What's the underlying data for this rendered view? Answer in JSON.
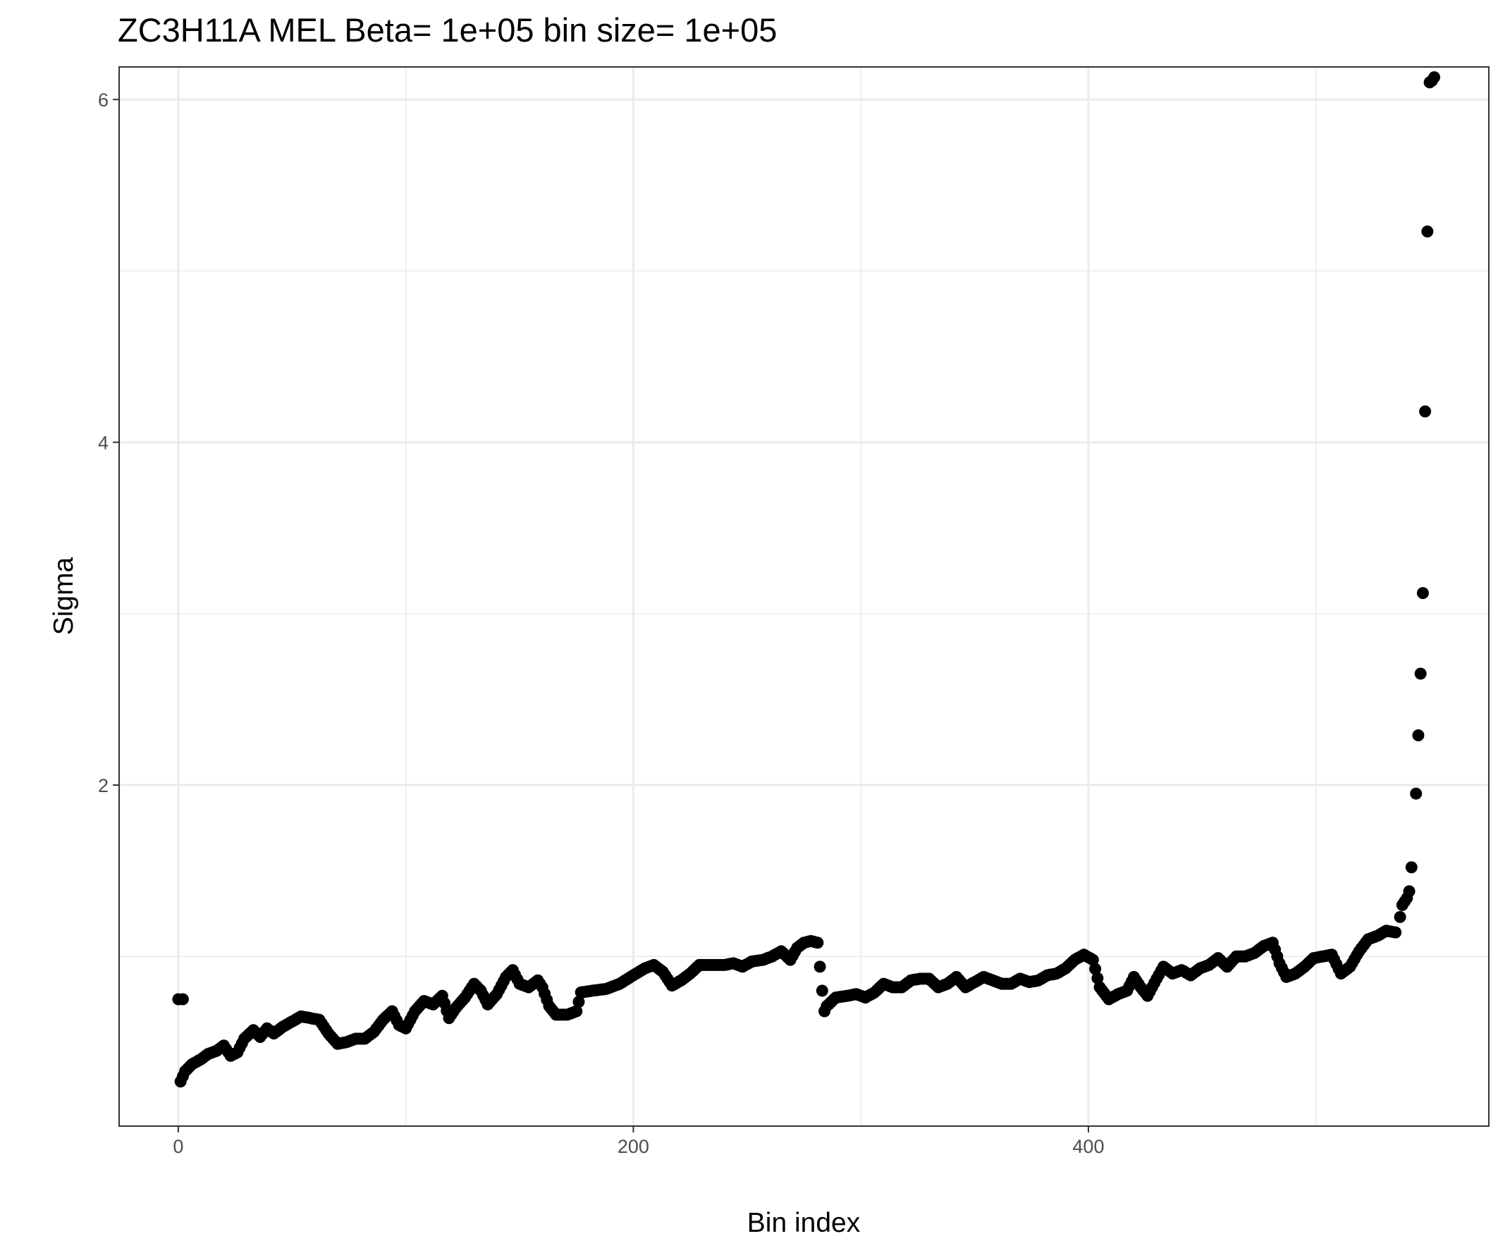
{
  "chart_data": {
    "type": "scatter",
    "title": "ZC3H11A MEL  Beta=  1e+05  bin size=  1e+05",
    "xlabel": "Bin index",
    "ylabel": "Sigma",
    "xlim": [
      -26,
      576
    ],
    "ylim": [
      0.01,
      6.19
    ],
    "grid": true,
    "x_ticks": [
      0,
      200,
      400
    ],
    "x_minor_ticks": [
      100,
      300,
      500
    ],
    "y_ticks": [
      2,
      4,
      6
    ],
    "y_minor_ticks": [
      1,
      3,
      5
    ],
    "point_color": "#000000",
    "knots": [
      [
        1,
        0.27
      ],
      [
        3,
        0.33
      ],
      [
        6,
        0.37
      ],
      [
        10,
        0.4
      ],
      [
        13,
        0.43
      ],
      [
        17,
        0.45
      ],
      [
        20,
        0.48
      ],
      [
        23,
        0.42
      ],
      [
        26,
        0.44
      ],
      [
        29,
        0.52
      ],
      [
        33,
        0.57
      ],
      [
        36,
        0.53
      ],
      [
        39,
        0.58
      ],
      [
        42,
        0.55
      ],
      [
        46,
        0.59
      ],
      [
        50,
        0.62
      ],
      [
        54,
        0.65
      ],
      [
        58,
        0.64
      ],
      [
        62,
        0.63
      ],
      [
        66,
        0.55
      ],
      [
        70,
        0.49
      ],
      [
        74,
        0.5
      ],
      [
        78,
        0.52
      ],
      [
        82,
        0.52
      ],
      [
        86,
        0.56
      ],
      [
        90,
        0.63
      ],
      [
        94,
        0.68
      ],
      [
        97,
        0.6
      ],
      [
        100,
        0.58
      ],
      [
        104,
        0.68
      ],
      [
        108,
        0.74
      ],
      [
        112,
        0.72
      ],
      [
        116,
        0.77
      ],
      [
        119,
        0.64
      ],
      [
        122,
        0.7
      ],
      [
        126,
        0.76
      ],
      [
        130,
        0.84
      ],
      [
        133,
        0.8
      ],
      [
        136,
        0.72
      ],
      [
        140,
        0.78
      ],
      [
        144,
        0.88
      ],
      [
        147,
        0.92
      ],
      [
        150,
        0.84
      ],
      [
        154,
        0.82
      ],
      [
        158,
        0.86
      ],
      [
        160,
        0.82
      ],
      [
        163,
        0.71
      ],
      [
        166,
        0.66
      ],
      [
        171,
        0.66
      ],
      [
        175,
        0.68
      ],
      [
        177,
        0.79
      ],
      [
        182,
        0.8
      ],
      [
        188,
        0.81
      ],
      [
        194,
        0.84
      ],
      [
        200,
        0.89
      ],
      [
        205,
        0.93
      ],
      [
        209,
        0.95
      ],
      [
        213,
        0.91
      ],
      [
        217,
        0.83
      ],
      [
        221,
        0.86
      ],
      [
        225,
        0.9
      ],
      [
        229,
        0.95
      ],
      [
        235,
        0.95
      ],
      [
        240,
        0.95
      ],
      [
        244,
        0.96
      ],
      [
        248,
        0.94
      ],
      [
        252,
        0.97
      ],
      [
        257,
        0.98
      ],
      [
        261,
        1.0
      ],
      [
        265,
        1.03
      ],
      [
        269,
        0.98
      ],
      [
        272,
        1.05
      ],
      [
        275,
        1.08
      ],
      [
        278,
        1.09
      ],
      [
        281,
        1.08
      ]
    ],
    "knots_2": [
      [
        285,
        0.71
      ],
      [
        289,
        0.76
      ],
      [
        294,
        0.77
      ],
      [
        298,
        0.78
      ],
      [
        302,
        0.76
      ],
      [
        306,
        0.79
      ],
      [
        310,
        0.84
      ],
      [
        314,
        0.82
      ],
      [
        318,
        0.82
      ],
      [
        322,
        0.86
      ],
      [
        326,
        0.87
      ],
      [
        330,
        0.87
      ],
      [
        334,
        0.82
      ],
      [
        338,
        0.84
      ],
      [
        342,
        0.88
      ],
      [
        346,
        0.82
      ],
      [
        350,
        0.85
      ],
      [
        354,
        0.88
      ],
      [
        358,
        0.86
      ],
      [
        362,
        0.84
      ],
      [
        366,
        0.84
      ],
      [
        370,
        0.87
      ],
      [
        374,
        0.85
      ],
      [
        378,
        0.86
      ],
      [
        382,
        0.89
      ],
      [
        386,
        0.9
      ],
      [
        390,
        0.93
      ],
      [
        394,
        0.98
      ],
      [
        398,
        1.01
      ],
      [
        402,
        0.98
      ],
      [
        405,
        0.82
      ],
      [
        409,
        0.75
      ],
      [
        413,
        0.78
      ],
      [
        417,
        0.8
      ],
      [
        420,
        0.88
      ],
      [
        423,
        0.82
      ],
      [
        426,
        0.77
      ],
      [
        430,
        0.87
      ],
      [
        433,
        0.94
      ],
      [
        437,
        0.9
      ],
      [
        441,
        0.92
      ],
      [
        445,
        0.89
      ],
      [
        449,
        0.93
      ],
      [
        453,
        0.95
      ],
      [
        457,
        0.99
      ],
      [
        461,
        0.94
      ],
      [
        465,
        1.0
      ],
      [
        469,
        1.0
      ],
      [
        473,
        1.02
      ],
      [
        477,
        1.06
      ],
      [
        481,
        1.08
      ],
      [
        484,
        0.96
      ],
      [
        487,
        0.88
      ],
      [
        491,
        0.9
      ],
      [
        495,
        0.94
      ],
      [
        499,
        0.99
      ],
      [
        503,
        1.0
      ],
      [
        507,
        1.01
      ],
      [
        511,
        0.9
      ],
      [
        515,
        0.94
      ],
      [
        519,
        1.03
      ],
      [
        523,
        1.1
      ],
      [
        527,
        1.12
      ],
      [
        531,
        1.15
      ],
      [
        535,
        1.14
      ]
    ],
    "outliers": [
      [
        0,
        0.75
      ],
      [
        2,
        0.75
      ],
      [
        282,
        0.94
      ],
      [
        283,
        0.8
      ],
      [
        284,
        0.68
      ],
      [
        537,
        1.23
      ],
      [
        538,
        1.3
      ],
      [
        539,
        1.32
      ],
      [
        540,
        1.34
      ],
      [
        541,
        1.38
      ],
      [
        542,
        1.52
      ],
      [
        544,
        1.95
      ],
      [
        545,
        2.29
      ],
      [
        546,
        2.65
      ],
      [
        547,
        3.12
      ],
      [
        548,
        4.18
      ],
      [
        549,
        5.23
      ],
      [
        550,
        6.1
      ],
      [
        551,
        6.11
      ],
      [
        552,
        6.13
      ]
    ]
  }
}
